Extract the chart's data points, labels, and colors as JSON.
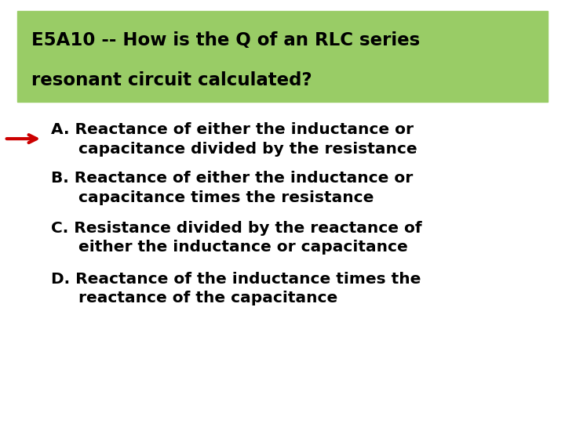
{
  "title_line1": "E5A10 -- How is the Q of an RLC series",
  "title_line2": "resonant circuit calculated?",
  "title_bg_color": "#99cc66",
  "answer_a_line1": "A. Reactance of either the inductance or",
  "answer_a_line2": "     capacitance divided by the resistance",
  "answer_b_line1": "B. Reactance of either the inductance or",
  "answer_b_line2": "     capacitance times the resistance",
  "answer_c_line1": "C. Resistance divided by the reactance of",
  "answer_c_line2": "     either the inductance or capacitance",
  "answer_d_line1": "D. Reactance of the inductance times the",
  "answer_d_line2": "     reactance of the capacitance",
  "bg_color": "#ffffff",
  "text_color": "#000000",
  "arrow_color": "#cc0000",
  "title_fontsize": 16.5,
  "body_fontsize": 14.5
}
